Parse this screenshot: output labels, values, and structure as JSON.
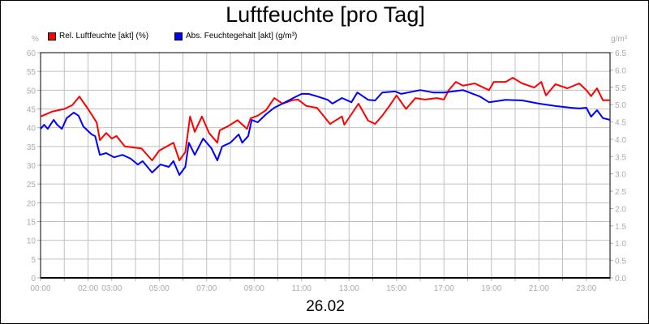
{
  "chart_data": {
    "type": "line",
    "title": "Luftfeuchte [pro Tag]",
    "xlabel": "26.02",
    "y_left_unit": "%",
    "y_right_unit": "g/m³",
    "ylim_left": [
      0,
      60
    ],
    "ylim_right": [
      0,
      6.5
    ],
    "xlim": [
      "00:00",
      "24:00"
    ],
    "grid": true,
    "legend_placement": "top-left",
    "x_tick_labels": [
      "00:00",
      "02:00",
      "03:00",
      "05:00",
      "07:00",
      "09:00",
      "11:00",
      "13:00",
      "15:00",
      "17:00",
      "19:00",
      "21:00",
      "23:00"
    ],
    "y_left_ticks": [
      "0",
      "5",
      "10",
      "15",
      "20",
      "25",
      "30",
      "35",
      "40",
      "45",
      "50",
      "55",
      "60"
    ],
    "y_right_ticks": [
      "0.0",
      "0.5",
      "1.0",
      "1.5",
      "2.0",
      "2.5",
      "3.0",
      "3.5",
      "4.0",
      "4.5",
      "5.0",
      "5.5",
      "6.0",
      "6.5"
    ],
    "series": [
      {
        "name": "Rel. Luftfeuchte [akt] (%)",
        "color": "#ff0000",
        "axis": "left",
        "points": [
          [
            "00:00",
            43
          ],
          [
            "00:30",
            44.3
          ],
          [
            "01:00",
            45
          ],
          [
            "01:20",
            46
          ],
          [
            "01:38",
            48.3
          ],
          [
            "02:00",
            45
          ],
          [
            "02:22",
            41.4
          ],
          [
            "02:30",
            36.7
          ],
          [
            "02:46",
            38.6
          ],
          [
            "03:00",
            37.1
          ],
          [
            "03:12",
            37.8
          ],
          [
            "03:33",
            35
          ],
          [
            "04:15",
            34.5
          ],
          [
            "04:42",
            31.3
          ],
          [
            "05:00",
            33.9
          ],
          [
            "05:36",
            36
          ],
          [
            "05:51",
            31.3
          ],
          [
            "06:06",
            33.5
          ],
          [
            "06:18",
            43
          ],
          [
            "06:30",
            38.9
          ],
          [
            "06:48",
            43
          ],
          [
            "07:06",
            38.6
          ],
          [
            "07:27",
            36
          ],
          [
            "07:33",
            39.3
          ],
          [
            "07:54",
            40.4
          ],
          [
            "08:18",
            42
          ],
          [
            "08:42",
            39.7
          ],
          [
            "08:51",
            42.5
          ],
          [
            "09:09",
            43.2
          ],
          [
            "09:30",
            44.7
          ],
          [
            "09:51",
            47.9
          ],
          [
            "10:12",
            46.4
          ],
          [
            "10:36",
            47.3
          ],
          [
            "10:51",
            47.5
          ],
          [
            "11:12",
            45.8
          ],
          [
            "11:39",
            45.3
          ],
          [
            "12:12",
            41
          ],
          [
            "12:42",
            43
          ],
          [
            "12:48",
            40.8
          ],
          [
            "13:06",
            43.6
          ],
          [
            "13:24",
            46.4
          ],
          [
            "13:48",
            41.9
          ],
          [
            "14:06",
            41
          ],
          [
            "14:24",
            43.2
          ],
          [
            "14:42",
            45.8
          ],
          [
            "15:00",
            48.6
          ],
          [
            "15:24",
            45
          ],
          [
            "15:48",
            47.9
          ],
          [
            "16:12",
            47.5
          ],
          [
            "16:42",
            47.9
          ],
          [
            "17:00",
            47.5
          ],
          [
            "17:12",
            50
          ],
          [
            "17:30",
            52.2
          ],
          [
            "17:48",
            51.2
          ],
          [
            "18:18",
            51.8
          ],
          [
            "18:30",
            51.2
          ],
          [
            "18:54",
            50
          ],
          [
            "19:06",
            52.2
          ],
          [
            "19:36",
            52.2
          ],
          [
            "19:54",
            53.3
          ],
          [
            "20:18",
            51.8
          ],
          [
            "20:48",
            50.7
          ],
          [
            "21:06",
            52.2
          ],
          [
            "21:18",
            48.6
          ],
          [
            "21:42",
            51.6
          ],
          [
            "22:12",
            50.5
          ],
          [
            "22:42",
            51.8
          ],
          [
            "23:00",
            50
          ],
          [
            "23:12",
            48.4
          ],
          [
            "23:27",
            50.5
          ],
          [
            "23:42",
            47.3
          ],
          [
            "24:00",
            47.3
          ]
        ]
      },
      {
        "name": "Abs. Feuchtegehalt [akt] (g/m³)",
        "color": "#0000ff",
        "axis": "right",
        "points": [
          [
            "00:00",
            4.3
          ],
          [
            "00:09",
            4.42
          ],
          [
            "00:18",
            4.3
          ],
          [
            "00:33",
            4.56
          ],
          [
            "00:42",
            4.42
          ],
          [
            "00:54",
            4.3
          ],
          [
            "01:06",
            4.61
          ],
          [
            "01:24",
            4.77
          ],
          [
            "01:36",
            4.68
          ],
          [
            "01:48",
            4.37
          ],
          [
            "02:09",
            4.14
          ],
          [
            "02:18",
            4.09
          ],
          [
            "02:30",
            3.55
          ],
          [
            "02:46",
            3.6
          ],
          [
            "03:06",
            3.48
          ],
          [
            "03:27",
            3.55
          ],
          [
            "03:48",
            3.44
          ],
          [
            "04:06",
            3.27
          ],
          [
            "04:18",
            3.37
          ],
          [
            "04:42",
            3.04
          ],
          [
            "05:03",
            3.27
          ],
          [
            "05:24",
            3.2
          ],
          [
            "05:36",
            3.37
          ],
          [
            "05:51",
            2.97
          ],
          [
            "06:06",
            3.2
          ],
          [
            "06:15",
            3.9
          ],
          [
            "06:30",
            3.55
          ],
          [
            "06:51",
            4.02
          ],
          [
            "07:12",
            3.74
          ],
          [
            "07:27",
            3.39
          ],
          [
            "07:39",
            3.79
          ],
          [
            "08:00",
            3.9
          ],
          [
            "08:21",
            4.14
          ],
          [
            "08:30",
            3.9
          ],
          [
            "08:45",
            4.09
          ],
          [
            "08:54",
            4.56
          ],
          [
            "09:09",
            4.49
          ],
          [
            "09:30",
            4.72
          ],
          [
            "09:51",
            4.91
          ],
          [
            "10:12",
            5.03
          ],
          [
            "10:39",
            5.19
          ],
          [
            "11:00",
            5.31
          ],
          [
            "11:18",
            5.31
          ],
          [
            "11:39",
            5.24
          ],
          [
            "12:06",
            5.14
          ],
          [
            "12:18",
            5.03
          ],
          [
            "12:42",
            5.19
          ],
          [
            "13:06",
            5.07
          ],
          [
            "13:21",
            5.35
          ],
          [
            "13:48",
            5.14
          ],
          [
            "14:06",
            5.12
          ],
          [
            "14:24",
            5.35
          ],
          [
            "14:57",
            5.38
          ],
          [
            "15:12",
            5.31
          ],
          [
            "16:00",
            5.42
          ],
          [
            "16:33",
            5.35
          ],
          [
            "17:00",
            5.35
          ],
          [
            "17:48",
            5.42
          ],
          [
            "18:30",
            5.24
          ],
          [
            "18:54",
            5.07
          ],
          [
            "19:36",
            5.14
          ],
          [
            "20:18",
            5.12
          ],
          [
            "21:00",
            5.03
          ],
          [
            "21:42",
            4.96
          ],
          [
            "22:21",
            4.91
          ],
          [
            "22:42",
            4.89
          ],
          [
            "23:00",
            4.91
          ],
          [
            "23:12",
            4.65
          ],
          [
            "23:27",
            4.84
          ],
          [
            "23:42",
            4.61
          ],
          [
            "24:00",
            4.56
          ]
        ]
      }
    ]
  }
}
